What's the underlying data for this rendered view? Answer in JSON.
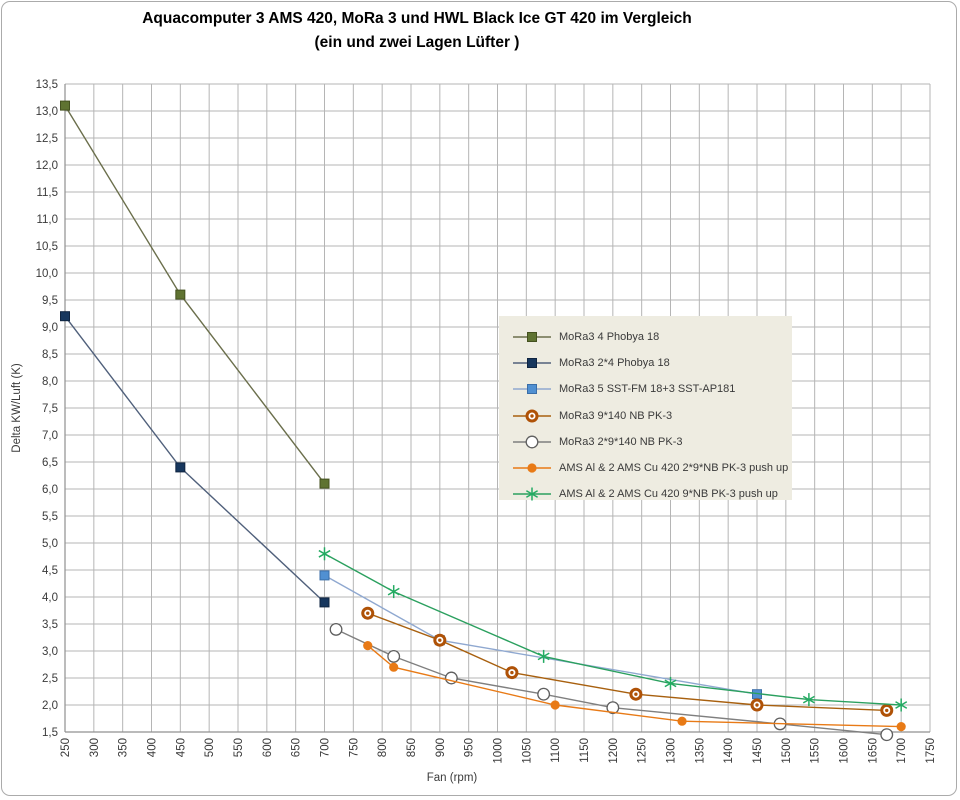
{
  "window": {
    "title_line1": "Aquacomputer 3 AMS 420, MoRa 3 und HWL Black Ice GT 420 im Vergleich",
    "title_line2": "(ein und zwei Lagen Lüfter )"
  },
  "chart_data": {
    "type": "line",
    "title": "Aquacomputer 3 AMS 420, MoRa 3 und HWL Black Ice GT 420 im Vergleich",
    "subtitle": "(ein und zwei Lagen Lüfter )",
    "xlabel": "Fan (rpm)",
    "ylabel": "Delta KW/Luft (K)",
    "xlim": [
      250,
      1750
    ],
    "ylim": [
      1.5,
      13.5
    ],
    "grid": true,
    "legend_position": "center-right",
    "x_ticks": [
      250,
      300,
      350,
      400,
      450,
      500,
      550,
      600,
      650,
      700,
      750,
      800,
      850,
      900,
      950,
      1000,
      1050,
      1100,
      1150,
      1200,
      1250,
      1300,
      1350,
      1400,
      1450,
      1500,
      1550,
      1600,
      1650,
      1700,
      1750
    ],
    "y_ticks": [
      1.5,
      2.0,
      2.5,
      3.0,
      3.5,
      4.0,
      4.5,
      5.0,
      5.5,
      6.0,
      6.5,
      7.0,
      7.5,
      8.0,
      8.5,
      9.0,
      9.5,
      10.0,
      10.5,
      11.0,
      11.5,
      12.0,
      12.5,
      13.0,
      13.5
    ],
    "y_tick_labels": [
      "1,5",
      "2,0",
      "2,5",
      "3,0",
      "3,5",
      "4,0",
      "4,5",
      "5,0",
      "5,5",
      "6,0",
      "6,5",
      "7,0",
      "7,5",
      "8,0",
      "8,5",
      "9,0",
      "9,5",
      "10,0",
      "10,5",
      "11,0",
      "11,5",
      "12,0",
      "12,5",
      "13,0",
      "13,5"
    ],
    "series": [
      {
        "name": "MoRa3 4 Phobya 18",
        "line_color": "#6b6f4c",
        "marker": {
          "type": "square",
          "fill": "#5f7331",
          "stroke": "#44511f"
        },
        "points": [
          [
            250,
            13.1
          ],
          [
            450,
            9.6
          ],
          [
            700,
            6.1
          ]
        ]
      },
      {
        "name": "MoRa3 2*4 Phobya 18",
        "line_color": "#50607b",
        "marker": {
          "type": "square",
          "fill": "#17375e",
          "stroke": "#0f2440"
        },
        "points": [
          [
            250,
            9.2
          ],
          [
            450,
            6.4
          ],
          [
            700,
            3.9
          ]
        ]
      },
      {
        "name": "MoRa3 5 SST-FM 18+3 SST-AP181",
        "line_color": "#8fa8d0",
        "marker": {
          "type": "square",
          "fill": "#5090d2",
          "stroke": "#3a6ea8"
        },
        "points": [
          [
            700,
            4.4
          ],
          [
            900,
            3.2
          ],
          [
            1450,
            2.2
          ]
        ]
      },
      {
        "name": "MoRa3 9*140 NB PK-3",
        "line_color": "#a8600f",
        "marker": {
          "type": "ring-dot",
          "fill": "#ffffff",
          "stroke": "#af5207"
        },
        "points": [
          [
            775,
            3.7
          ],
          [
            900,
            3.2
          ],
          [
            1025,
            2.6
          ],
          [
            1240,
            2.2
          ],
          [
            1450,
            2.0
          ],
          [
            1675,
            1.9
          ]
        ]
      },
      {
        "name": "MoRa3 2*9*140 NB PK-3",
        "line_color": "#7f7f7f",
        "marker": {
          "type": "circle-open",
          "fill": "#ffffff",
          "stroke": "#5f5f5f"
        },
        "points": [
          [
            720,
            3.4
          ],
          [
            820,
            2.9
          ],
          [
            920,
            2.5
          ],
          [
            1080,
            2.2
          ],
          [
            1200,
            1.95
          ],
          [
            1490,
            1.65
          ],
          [
            1675,
            1.45
          ]
        ]
      },
      {
        "name": "AMS Al & 2 AMS Cu 420 2*9*NB PK-3 push up",
        "line_color": "#e87a16",
        "marker": {
          "type": "circle",
          "fill": "#e87a16",
          "stroke": "#e87a16"
        },
        "points": [
          [
            775,
            3.1
          ],
          [
            820,
            2.7
          ],
          [
            1100,
            2.0
          ],
          [
            1320,
            1.7
          ],
          [
            1700,
            1.6
          ]
        ]
      },
      {
        "name": "AMS Al & 2 AMS Cu 420 9*NB PK-3  push up",
        "line_color": "#2ba05f",
        "marker": {
          "type": "asterisk",
          "fill": "none",
          "stroke": "#23ab62"
        },
        "points": [
          [
            700,
            4.8
          ],
          [
            820,
            4.1
          ],
          [
            1080,
            2.9
          ],
          [
            1300,
            2.4
          ],
          [
            1540,
            2.1
          ],
          [
            1700,
            2.0
          ]
        ]
      }
    ],
    "style": {
      "grid_color": "#b5b5b5",
      "axis_color": "#909090",
      "tick_text_color": "#3a3a3a",
      "legend_bg": "#eeece1",
      "plot_bg": "#ffffff"
    }
  }
}
